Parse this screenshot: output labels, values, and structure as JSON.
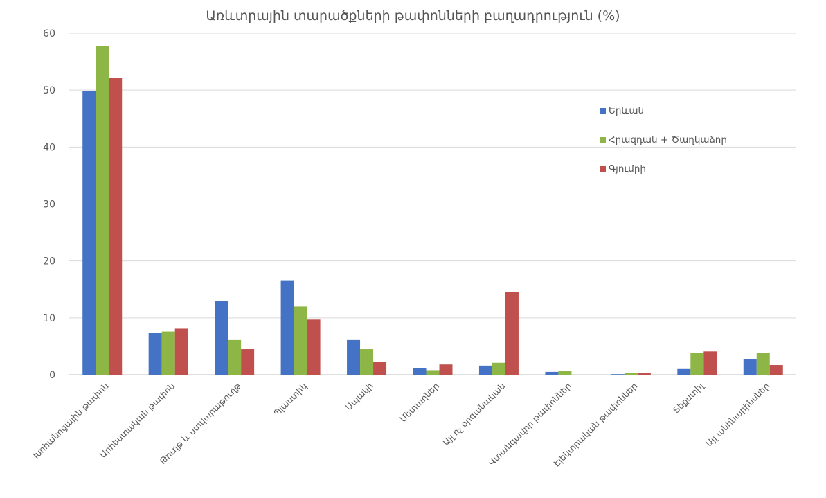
{
  "chart_data": {
    "type": "bar",
    "title": "Առևտրային տարածքների թափոնների բաղադրություն (%)",
    "categories": [
      "Խոհանոցային թափոն",
      "Արհեստական թափոն",
      "Թուղթ և ստվարաթուղթ",
      "Պլաստիկ",
      "Ապակի",
      "Մետաղներ",
      "Այլ ոչ օրգանական",
      "Վտանգավոր թափոններ",
      "Էլեկտրական թափոններ",
      "Տեքստիլ",
      "Այլ անհնարինսներ"
    ],
    "series": [
      {
        "name": "Երևան",
        "color": "#4472c4",
        "values": [
          49.8,
          7.3,
          13.0,
          16.6,
          6.1,
          1.2,
          1.6,
          0.5,
          0.1,
          1.0,
          2.7
        ]
      },
      {
        "name": "Հրազդան + Ծաղկաձոր",
        "color": "#8db647",
        "values": [
          57.8,
          7.6,
          6.1,
          12.0,
          4.5,
          0.8,
          2.1,
          0.7,
          0.3,
          3.8,
          3.8
        ]
      },
      {
        "name": "Գյումրի",
        "color": "#c0504d",
        "values": [
          52.1,
          8.1,
          4.5,
          9.7,
          2.2,
          1.8,
          14.5,
          0.0,
          0.3,
          4.1,
          1.7
        ]
      }
    ],
    "ylim": [
      0,
      60
    ],
    "yticks": [
      0,
      10,
      20,
      30,
      40,
      50,
      60
    ],
    "grid": true,
    "legend_position": "right",
    "xlabel": "",
    "ylabel": ""
  }
}
